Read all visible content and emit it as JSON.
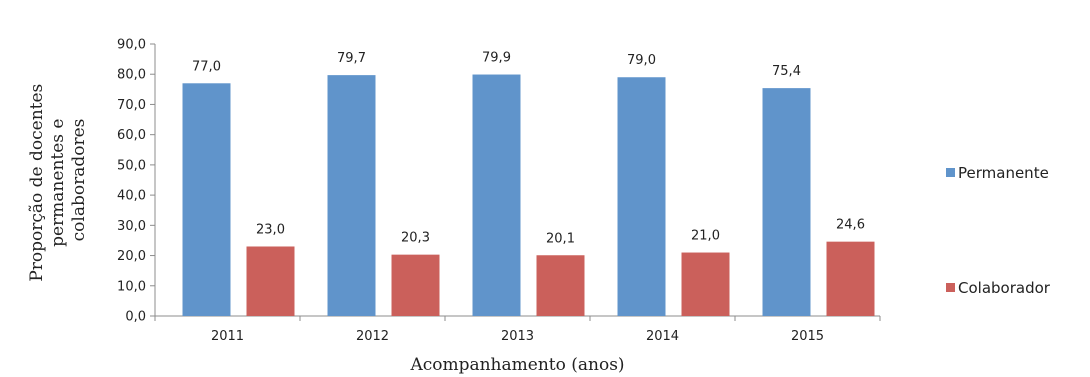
{
  "chart_data": {
    "type": "bar",
    "categories": [
      "2011",
      "2012",
      "2013",
      "2014",
      "2015"
    ],
    "series": [
      {
        "name": "Permanente",
        "color": "#6094CB",
        "values": [
          77.0,
          79.7,
          79.9,
          79.0,
          75.4
        ],
        "labels": [
          "77,0",
          "79,7",
          "79,9",
          "79,0",
          "75,4"
        ]
      },
      {
        "name": "Colaborador",
        "color": "#CB605B",
        "values": [
          23.0,
          20.3,
          20.1,
          21.0,
          24.6
        ],
        "labels": [
          "23,0",
          "20,3",
          "20,1",
          "21,0",
          "24,6"
        ]
      }
    ],
    "title": "",
    "xlabel": "Acompanhamento (anos)",
    "ylabel_lines": [
      "Proporção de docentes",
      "permanentes e",
      "colaboradores"
    ],
    "ylim": [
      0,
      90
    ],
    "yticks": [
      0,
      10,
      20,
      30,
      40,
      50,
      60,
      70,
      80,
      90
    ],
    "ytick_labels": [
      "0,0",
      "10,0",
      "20,0",
      "30,0",
      "40,0",
      "50,0",
      "60,0",
      "70,0",
      "80,0",
      "90,0"
    ],
    "grid": false,
    "legend": "right"
  }
}
